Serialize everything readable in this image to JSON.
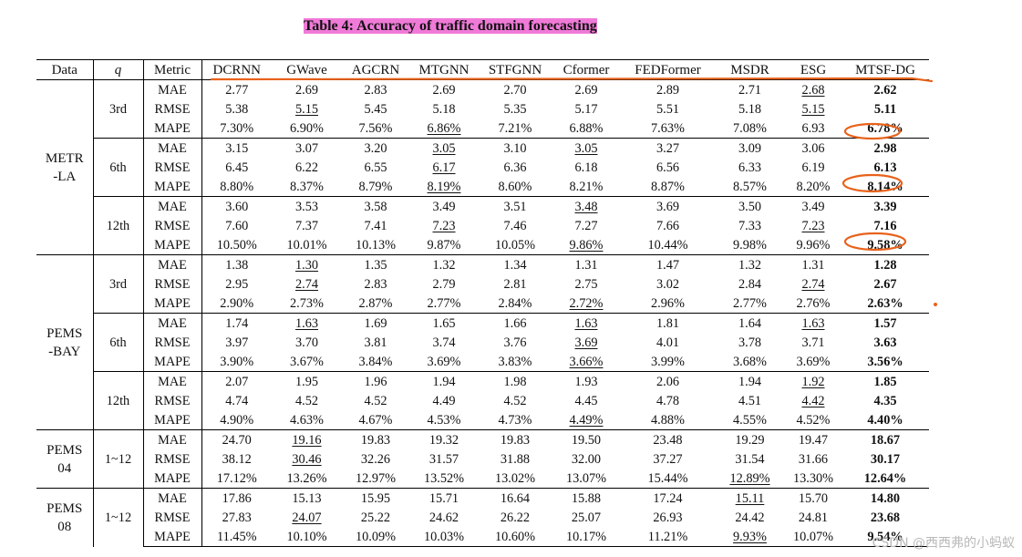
{
  "caption": "Table 4: Accuracy of traffic domain forecasting",
  "header": {
    "data": "Data",
    "q": "q",
    "metric": "Metric",
    "models": [
      "DCRNN",
      "GWave",
      "AGCRN",
      "MTGNN",
      "STFGNN",
      "Cformer",
      "FEDFormer",
      "MSDR",
      "ESG",
      "MTSF-DG"
    ]
  },
  "groups": [
    {
      "dataset": [
        "METR",
        "-LA"
      ],
      "horizons": [
        {
          "q": "3rd",
          "rows": [
            {
              "metric": "MAE",
              "values": [
                "2.77",
                "2.69",
                "2.83",
                "2.69",
                "2.70",
                "2.69",
                "2.89",
                "2.71",
                "2.68",
                "2.62"
              ],
              "underline": [
                8
              ],
              "bold": [
                9
              ]
            },
            {
              "metric": "RMSE",
              "values": [
                "5.38",
                "5.15",
                "5.45",
                "5.18",
                "5.35",
                "5.17",
                "5.51",
                "5.18",
                "5.15",
                "5.11"
              ],
              "underline": [
                1,
                8
              ],
              "bold": [
                9
              ]
            },
            {
              "metric": "MAPE",
              "values": [
                "7.30%",
                "6.90%",
                "7.56%",
                "6.86%",
                "7.21%",
                "6.88%",
                "7.63%",
                "7.08%",
                "6.93",
                "6.78%"
              ],
              "underline": [
                3
              ],
              "bold": [
                9
              ]
            }
          ]
        },
        {
          "q": "6th",
          "rows": [
            {
              "metric": "MAE",
              "values": [
                "3.15",
                "3.07",
                "3.20",
                "3.05",
                "3.10",
                "3.05",
                "3.27",
                "3.09",
                "3.06",
                "2.98"
              ],
              "underline": [
                3,
                5
              ],
              "bold": [
                9
              ]
            },
            {
              "metric": "RMSE",
              "values": [
                "6.45",
                "6.22",
                "6.55",
                "6.17",
                "6.36",
                "6.18",
                "6.56",
                "6.33",
                "6.19",
                "6.13"
              ],
              "underline": [
                3
              ],
              "bold": [
                9
              ]
            },
            {
              "metric": "MAPE",
              "values": [
                "8.80%",
                "8.37%",
                "8.79%",
                "8.19%",
                "8.60%",
                "8.21%",
                "8.87%",
                "8.57%",
                "8.20%",
                "8.14%"
              ],
              "underline": [
                3
              ],
              "bold": [
                9
              ]
            }
          ]
        },
        {
          "q": "12th",
          "rows": [
            {
              "metric": "MAE",
              "values": [
                "3.60",
                "3.53",
                "3.58",
                "3.49",
                "3.51",
                "3.48",
                "3.69",
                "3.50",
                "3.49",
                "3.39"
              ],
              "underline": [
                5
              ],
              "bold": [
                9
              ]
            },
            {
              "metric": "RMSE",
              "values": [
                "7.60",
                "7.37",
                "7.41",
                "7.23",
                "7.46",
                "7.27",
                "7.66",
                "7.33",
                "7.23",
                "7.16"
              ],
              "underline": [
                3,
                8
              ],
              "bold": [
                9
              ]
            },
            {
              "metric": "MAPE",
              "values": [
                "10.50%",
                "10.01%",
                "10.13%",
                "9.87%",
                "10.05%",
                "9.86%",
                "10.44%",
                "9.98%",
                "9.96%",
                "9.58%"
              ],
              "underline": [
                5
              ],
              "bold": [
                9
              ]
            }
          ]
        }
      ]
    },
    {
      "dataset": [
        "PEMS",
        "-BAY"
      ],
      "horizons": [
        {
          "q": "3rd",
          "rows": [
            {
              "metric": "MAE",
              "values": [
                "1.38",
                "1.30",
                "1.35",
                "1.32",
                "1.34",
                "1.31",
                "1.47",
                "1.32",
                "1.31",
                "1.28"
              ],
              "underline": [
                1
              ],
              "bold": [
                9
              ]
            },
            {
              "metric": "RMSE",
              "values": [
                "2.95",
                "2.74",
                "2.83",
                "2.79",
                "2.81",
                "2.75",
                "3.02",
                "2.84",
                "2.74",
                "2.67"
              ],
              "underline": [
                1,
                8
              ],
              "bold": [
                9
              ]
            },
            {
              "metric": "MAPE",
              "values": [
                "2.90%",
                "2.73%",
                "2.87%",
                "2.77%",
                "2.84%",
                "2.72%",
                "2.96%",
                "2.77%",
                "2.76%",
                "2.63%"
              ],
              "underline": [
                5
              ],
              "bold": [
                9
              ]
            }
          ]
        },
        {
          "q": "6th",
          "rows": [
            {
              "metric": "MAE",
              "values": [
                "1.74",
                "1.63",
                "1.69",
                "1.65",
                "1.66",
                "1.63",
                "1.81",
                "1.64",
                "1.63",
                "1.57"
              ],
              "underline": [
                1,
                5,
                8
              ],
              "bold": [
                9
              ]
            },
            {
              "metric": "RMSE",
              "values": [
                "3.97",
                "3.70",
                "3.81",
                "3.74",
                "3.76",
                "3.69",
                "4.01",
                "3.78",
                "3.71",
                "3.63"
              ],
              "underline": [
                5
              ],
              "bold": [
                9
              ]
            },
            {
              "metric": "MAPE",
              "values": [
                "3.90%",
                "3.67%",
                "3.84%",
                "3.69%",
                "3.83%",
                "3.66%",
                "3.99%",
                "3.68%",
                "3.69%",
                "3.56%"
              ],
              "underline": [
                5
              ],
              "bold": [
                9
              ]
            }
          ]
        },
        {
          "q": "12th",
          "rows": [
            {
              "metric": "MAE",
              "values": [
                "2.07",
                "1.95",
                "1.96",
                "1.94",
                "1.98",
                "1.93",
                "2.06",
                "1.94",
                "1.92",
                "1.85"
              ],
              "underline": [
                8
              ],
              "bold": [
                9
              ]
            },
            {
              "metric": "RMSE",
              "values": [
                "4.74",
                "4.52",
                "4.52",
                "4.49",
                "4.52",
                "4.45",
                "4.78",
                "4.51",
                "4.42",
                "4.35"
              ],
              "underline": [
                8
              ],
              "bold": [
                9
              ]
            },
            {
              "metric": "MAPE",
              "values": [
                "4.90%",
                "4.63%",
                "4.67%",
                "4.53%",
                "4.73%",
                "4.49%",
                "4.88%",
                "4.55%",
                "4.52%",
                "4.40%"
              ],
              "underline": [
                5
              ],
              "bold": [
                9
              ]
            }
          ]
        }
      ]
    },
    {
      "dataset": [
        "PEMS",
        "04"
      ],
      "horizons": [
        {
          "q": "1~12",
          "rows": [
            {
              "metric": "MAE",
              "values": [
                "24.70",
                "19.16",
                "19.83",
                "19.32",
                "19.83",
                "19.50",
                "23.48",
                "19.29",
                "19.47",
                "18.67"
              ],
              "underline": [
                1
              ],
              "bold": [
                9
              ]
            },
            {
              "metric": "RMSE",
              "values": [
                "38.12",
                "30.46",
                "32.26",
                "31.57",
                "31.88",
                "32.00",
                "37.27",
                "31.54",
                "31.66",
                "30.17"
              ],
              "underline": [
                1
              ],
              "bold": [
                9
              ]
            },
            {
              "metric": "MAPE",
              "values": [
                "17.12%",
                "13.26%",
                "12.97%",
                "13.52%",
                "13.02%",
                "13.07%",
                "15.44%",
                "12.89%",
                "13.30%",
                "12.64%"
              ],
              "underline": [
                7
              ],
              "bold": [
                9
              ]
            }
          ]
        }
      ]
    },
    {
      "dataset": [
        "PEMS",
        "08"
      ],
      "horizons": [
        {
          "q": "1~12",
          "rows": [
            {
              "metric": "MAE",
              "values": [
                "17.86",
                "15.13",
                "15.95",
                "15.71",
                "16.64",
                "15.88",
                "17.24",
                "15.11",
                "15.70",
                "14.80"
              ],
              "underline": [
                7
              ],
              "bold": [
                9
              ]
            },
            {
              "metric": "RMSE",
              "values": [
                "27.83",
                "24.07",
                "25.22",
                "24.62",
                "26.22",
                "25.07",
                "26.93",
                "24.42",
                "24.81",
                "23.68"
              ],
              "underline": [
                1
              ],
              "bold": [
                9
              ]
            },
            {
              "metric": "MAPE",
              "values": [
                "11.45%",
                "10.10%",
                "10.09%",
                "10.03%",
                "10.60%",
                "10.17%",
                "11.21%",
                "9.93%",
                "10.07%",
                "9.54%"
              ],
              "underline": [
                7
              ],
              "bold": [
                9
              ]
            }
          ]
        }
      ]
    }
  ],
  "watermark": "CSDN @西西弗的小蚂蚁",
  "colors": {
    "highlight": "#f07ad8",
    "ink": "#e8621b"
  }
}
